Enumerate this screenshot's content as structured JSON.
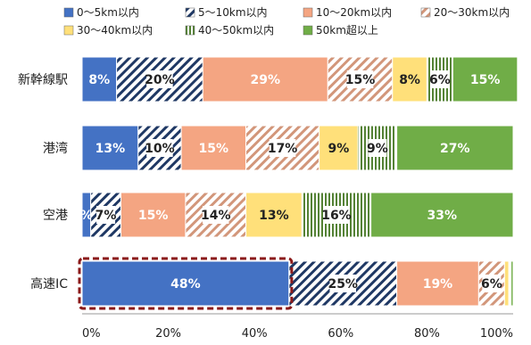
{
  "chart_data": {
    "type": "bar",
    "orientation": "horizontal",
    "stacked": true,
    "categories": [
      "新幹線駅",
      "港湾",
      "空港",
      "高速IC"
    ],
    "series": [
      {
        "name": "0〜5km以内",
        "color": "#4472c4",
        "pattern": "solid",
        "values": [
          8,
          13,
          2,
          48
        ],
        "labels": [
          "8%",
          "13%",
          "%",
          "48%"
        ]
      },
      {
        "name": "5〜10km以内",
        "color": "#1f3864",
        "pattern": "diagonal-navy",
        "values": [
          20,
          10,
          7,
          25
        ],
        "labels": [
          "20%",
          "10%",
          "7%",
          "25%"
        ]
      },
      {
        "name": "10〜20km以内",
        "color": "#f4a582",
        "pattern": "solid",
        "values": [
          29,
          15,
          15,
          19
        ],
        "labels": [
          "29%",
          "15%",
          "15%",
          "19%"
        ]
      },
      {
        "name": "20〜30km以内",
        "color": "#d2967a",
        "pattern": "diagonal-tan",
        "values": [
          15,
          17,
          14,
          6
        ],
        "labels": [
          "15%",
          "17%",
          "14%",
          "6%"
        ]
      },
      {
        "name": "30〜40km以内",
        "color": "#ffe07a",
        "pattern": "solid",
        "values": [
          8,
          9,
          13,
          1
        ],
        "labels": [
          "8%",
          "9%",
          "13%",
          ""
        ]
      },
      {
        "name": "40〜50km以内",
        "color": "#70ad47",
        "pattern": "vertical-green",
        "values": [
          6,
          9,
          16,
          0.5
        ],
        "labels": [
          "6%",
          "9%",
          "16%",
          ""
        ]
      },
      {
        "name": "50km超以上",
        "color": "#70ad47",
        "pattern": "solid",
        "values": [
          15,
          27,
          33,
          0.5
        ],
        "labels": [
          "15%",
          "27%",
          "33%",
          ""
        ]
      }
    ],
    "x_ticks": [
      "0%",
      "20%",
      "40%",
      "60%",
      "80%",
      "100%"
    ],
    "xlim": [
      0,
      100
    ],
    "legend_position": "top",
    "grid": false,
    "highlight": {
      "category": "高速IC",
      "series": "0〜5km以内",
      "border_color": "#8b1a1a",
      "style": "dashed"
    }
  }
}
